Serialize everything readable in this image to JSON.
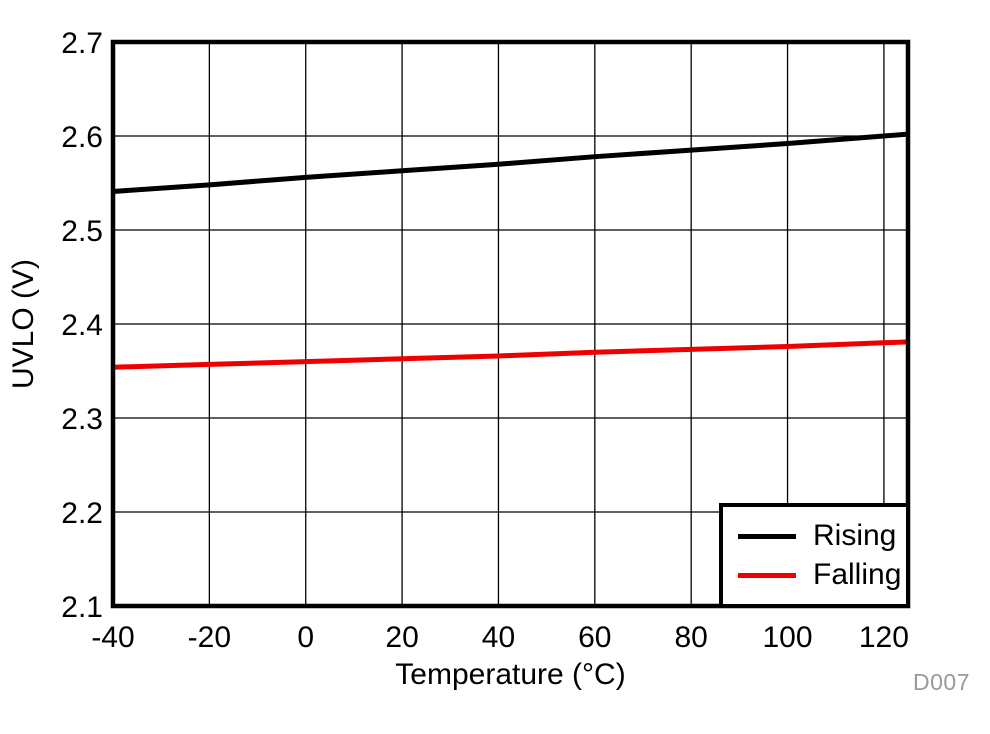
{
  "chart_data": {
    "type": "line",
    "title": "",
    "xlabel": "Temperature (°C)",
    "ylabel": "UVLO (V)",
    "xlim": [
      -40,
      125
    ],
    "ylim": [
      2.1,
      2.7
    ],
    "xticks": [
      -40,
      -20,
      0,
      20,
      40,
      60,
      80,
      100,
      120
    ],
    "yticks": [
      2.1,
      2.2,
      2.3,
      2.4,
      2.5,
      2.6,
      2.7
    ],
    "grid": true,
    "legend_position": "inside-bottom-right",
    "x": [
      -40,
      -20,
      0,
      20,
      40,
      60,
      80,
      100,
      120,
      125
    ],
    "series": [
      {
        "name": "Rising",
        "color": "#000000",
        "values": [
          2.541,
          2.548,
          2.556,
          2.563,
          2.57,
          2.578,
          2.585,
          2.592,
          2.6,
          2.602
        ]
      },
      {
        "name": "Falling",
        "color": "#ee0000",
        "values": [
          2.354,
          2.357,
          2.36,
          2.363,
          2.366,
          2.37,
          2.373,
          2.376,
          2.38,
          2.381
        ]
      }
    ],
    "watermark": "D007"
  },
  "colors": {
    "axis": "#000000",
    "grid": "#000000",
    "tick_text": "#000000",
    "watermark_text": "#9a9a9a",
    "background": "#ffffff"
  }
}
